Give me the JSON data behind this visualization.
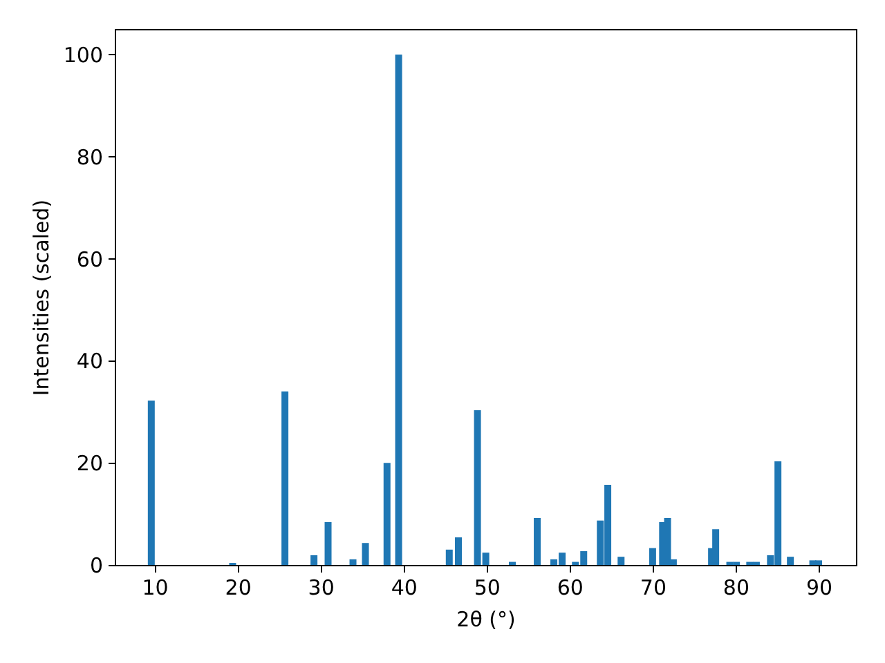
{
  "chart_data": {
    "type": "bar",
    "xlabel": "2θ (°)",
    "ylabel": "Intensities (scaled)",
    "x": [
      9.6,
      19.4,
      25.7,
      29.2,
      30.9,
      33.9,
      35.4,
      38.0,
      39.4,
      45.5,
      46.6,
      48.9,
      49.9,
      53.1,
      56.1,
      58.1,
      59.1,
      60.7,
      61.7,
      63.7,
      64.6,
      66.2,
      70.0,
      71.2,
      71.8,
      72.5,
      77.1,
      77.6,
      79.3,
      80.1,
      81.7,
      82.5,
      84.2,
      85.1,
      86.6,
      89.3,
      90.0
    ],
    "values": [
      32.2,
      0.4,
      34,
      1.9,
      8.4,
      1.1,
      4.3,
      20,
      100,
      3.0,
      5.4,
      30.3,
      2.4,
      0.6,
      9.2,
      1.1,
      2.4,
      0.6,
      2.7,
      8.7,
      15.7,
      1.6,
      3.3,
      8.4,
      9.2,
      1.1,
      3.3,
      7.0,
      0.6,
      0.6,
      0.6,
      0.6,
      1.9,
      20.3,
      1.6,
      0.9,
      0.9
    ],
    "color": "#1f77b4",
    "xlim": [
      5.2,
      94.5
    ],
    "xticks": [
      10,
      20,
      30,
      40,
      50,
      60,
      70,
      80,
      90
    ],
    "ylim": [
      0,
      105
    ],
    "yticks": [
      0,
      20,
      40,
      60,
      80,
      100
    ],
    "grid": false
  }
}
